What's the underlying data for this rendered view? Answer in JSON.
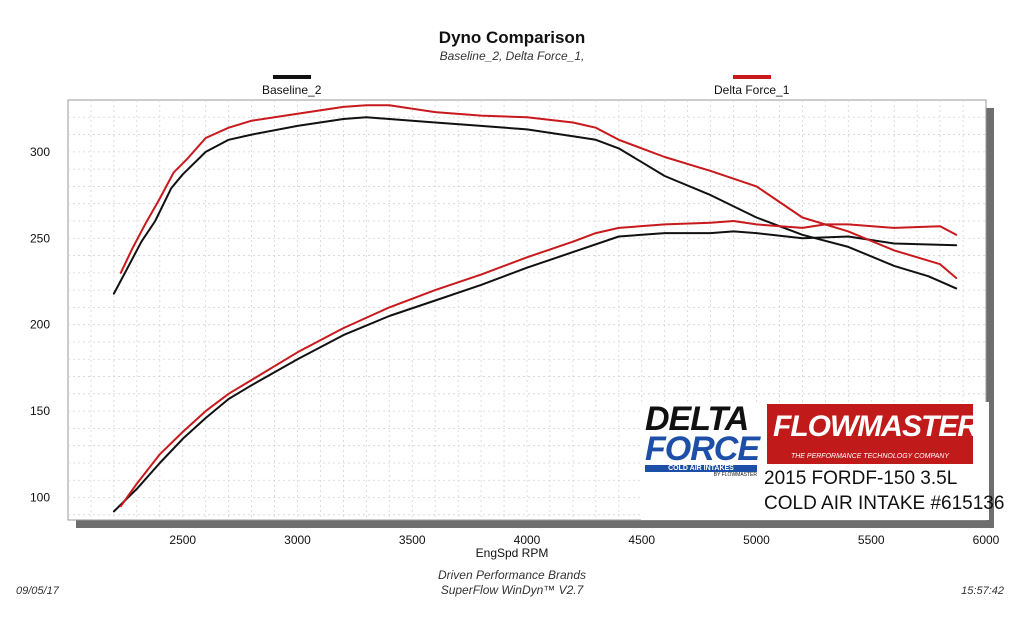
{
  "chart_data": {
    "type": "line",
    "title": "Dyno Comparison",
    "subtitle": "Baseline_2, Delta Force_1,",
    "xlabel": "EngSpd  RPM",
    "ylabel": "",
    "xlim": [
      2000,
      6000
    ],
    "ylim": [
      87,
      330
    ],
    "xticks": [
      2500,
      3000,
      3500,
      4000,
      4500,
      5000,
      5500,
      6000
    ],
    "yticks": [
      100,
      150,
      200,
      250,
      300
    ],
    "grid": true,
    "legend": [
      {
        "name": "Baseline_2",
        "color": "#111111"
      },
      {
        "name": "Delta Force_1",
        "color": "#c8191c"
      }
    ],
    "series": [
      {
        "name": "Baseline_2",
        "quantity": "torque",
        "color": "#111111",
        "x": [
          2200,
          2260,
          2320,
          2380,
          2450,
          2500,
          2600,
          2700,
          2800,
          3000,
          3200,
          3300,
          3400,
          3600,
          3800,
          4000,
          4200,
          4300,
          4400,
          4500,
          4600,
          4800,
          5000,
          5200,
          5400,
          5600,
          5750,
          5870
        ],
        "y": [
          218,
          233,
          248,
          260,
          279,
          287,
          300,
          307,
          310,
          315,
          319,
          320,
          319,
          317,
          315,
          313,
          309,
          307,
          302,
          294,
          286,
          275,
          262,
          252,
          245,
          234,
          228,
          221
        ]
      },
      {
        "name": "Baseline_2",
        "quantity": "power",
        "color": "#111111",
        "x": [
          2200,
          2300,
          2400,
          2500,
          2600,
          2700,
          2800,
          3000,
          3200,
          3400,
          3600,
          3800,
          4000,
          4200,
          4400,
          4600,
          4800,
          4900,
          5000,
          5200,
          5400,
          5600,
          5870
        ],
        "y": [
          92,
          105,
          120,
          134,
          146,
          157,
          165,
          180,
          194,
          205,
          214,
          223,
          233,
          242,
          251,
          253,
          253,
          254,
          253,
          250,
          251,
          247,
          246
        ]
      },
      {
        "name": "Delta Force_1",
        "quantity": "torque",
        "color": "#c8191c",
        "x": [
          2230,
          2280,
          2340,
          2400,
          2460,
          2520,
          2600,
          2700,
          2800,
          3000,
          3200,
          3300,
          3400,
          3600,
          3800,
          4000,
          4200,
          4300,
          4400,
          4600,
          4800,
          5000,
          5200,
          5400,
          5600,
          5800,
          5870
        ],
        "y": [
          230,
          244,
          259,
          273,
          288,
          296,
          308,
          314,
          318,
          322,
          326,
          327,
          327,
          323,
          321,
          320,
          317,
          314,
          307,
          297,
          289,
          280,
          262,
          254,
          243,
          235,
          227
        ]
      },
      {
        "name": "Delta Force_1",
        "quantity": "power",
        "color": "#c8191c",
        "x": [
          2230,
          2300,
          2400,
          2500,
          2600,
          2700,
          2800,
          3000,
          3200,
          3400,
          3600,
          3800,
          4000,
          4200,
          4300,
          4400,
          4600,
          4800,
          4900,
          5000,
          5200,
          5300,
          5400,
          5600,
          5800,
          5870
        ],
        "y": [
          95,
          108,
          125,
          138,
          150,
          160,
          168,
          184,
          198,
          210,
          220,
          229,
          239,
          248,
          253,
          256,
          258,
          259,
          260,
          258,
          256,
          258,
          258,
          256,
          257,
          252
        ]
      }
    ]
  },
  "annotations": {
    "vehicle_line1": "2015 FORDF-150 3.5L",
    "vehicle_line2": "COLD AIR INTAKE #615136",
    "logo_deltaforce": [
      "DELTA",
      "FORCE",
      "COLD AIR INTAKES",
      "BY FLOWMASTER"
    ],
    "logo_flowmaster": [
      "FLOWMASTER",
      "THE PERFORMANCE TECHNOLOGY COMPANY"
    ]
  },
  "footer": {
    "date": "09/05/17",
    "time": "15:57:42",
    "company": "Driven Performance Brands",
    "software": "SuperFlow WinDyn™  V2.7"
  }
}
